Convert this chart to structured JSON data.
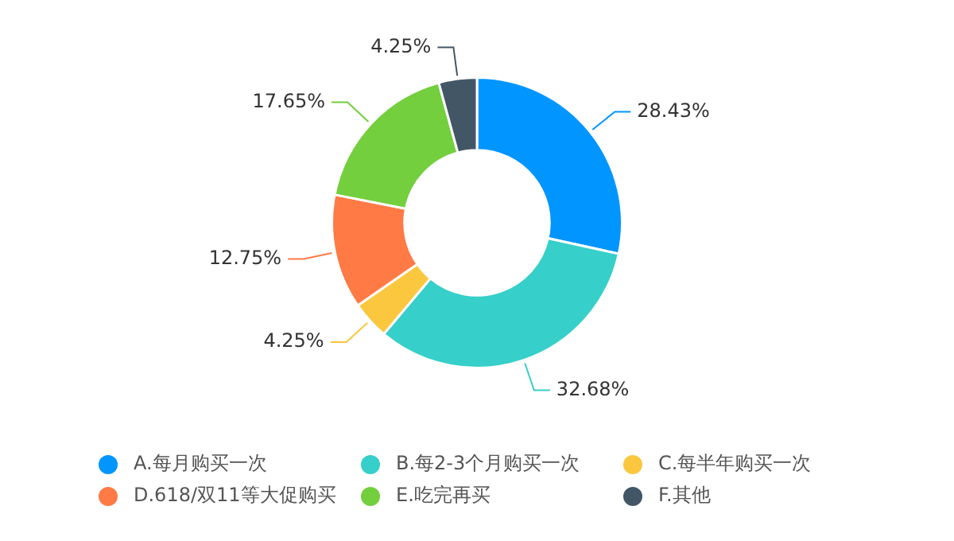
{
  "chart_data": {
    "type": "donut",
    "categories": [
      "A.每月购买一次",
      "B.每2-3个月购买一次",
      "C.每半年购买一次",
      "D.618/双11等大促购买",
      "E.吃完再买",
      "F.其他"
    ],
    "values": [
      28.43,
      32.68,
      4.25,
      12.75,
      17.65,
      4.25
    ],
    "colors": [
      "#0095ff",
      "#36cfc9",
      "#fac73e",
      "#ff7a45",
      "#73cf3d",
      "#435665"
    ],
    "value_labels": [
      "28.43%",
      "32.68%",
      "4.25%",
      "12.75%",
      "17.65%",
      "4.25%"
    ],
    "legend": "bottom"
  }
}
